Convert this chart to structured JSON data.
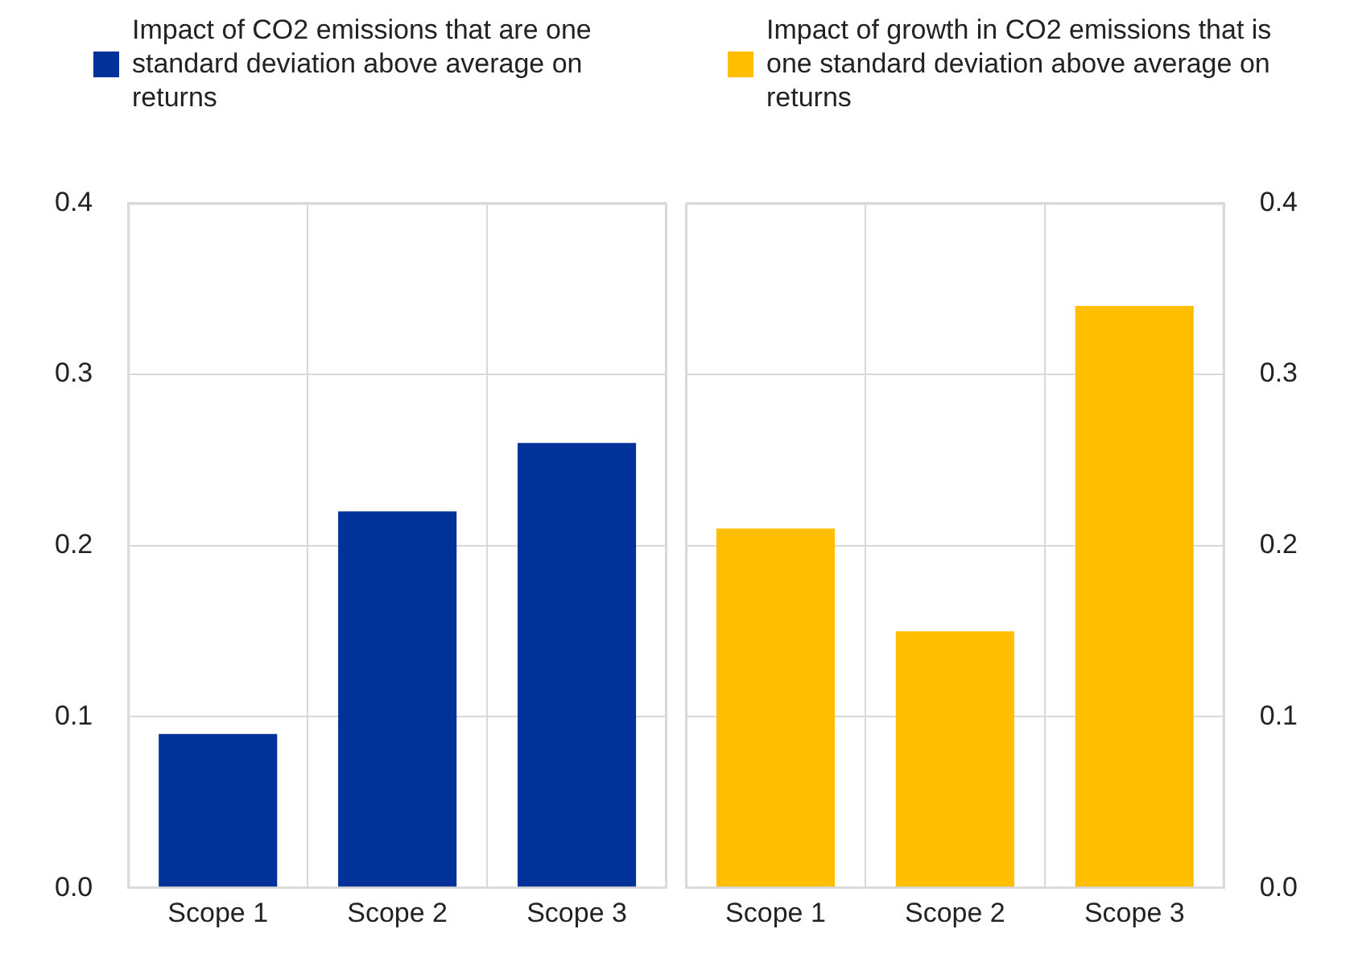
{
  "chart_data": [
    {
      "type": "bar",
      "categories": [
        "Scope 1",
        "Scope 2",
        "Scope 3"
      ],
      "series": [
        {
          "name": "Impact of CO2 emissions that are one standard deviation above average on returns",
          "color": "#003299",
          "values": [
            0.09,
            0.22,
            0.26
          ]
        }
      ],
      "ylim": [
        0,
        0.4
      ],
      "yticks": [
        {
          "value": 0,
          "label": "0.0"
        },
        0.1,
        0.2,
        0.3,
        0.4
      ],
      "grid": true,
      "legend": "top"
    },
    {
      "type": "bar",
      "categories": [
        "Scope 1",
        "Scope 2",
        "Scope 3"
      ],
      "series": [
        {
          "name": "Impact of growth in CO2 emissions that is one standard deviation above average on returns",
          "color": "#ffbf00",
          "values": [
            0.21,
            0.15,
            0.34
          ],
          "axis": "y2"
        }
      ],
      "y2lim": [
        0,
        0.4
      ],
      "y2ticks": [
        {
          "value": 0,
          "label": "0.0"
        },
        0.1,
        0.2,
        0.3,
        0.4
      ],
      "grid": true,
      "legend": "top"
    }
  ]
}
